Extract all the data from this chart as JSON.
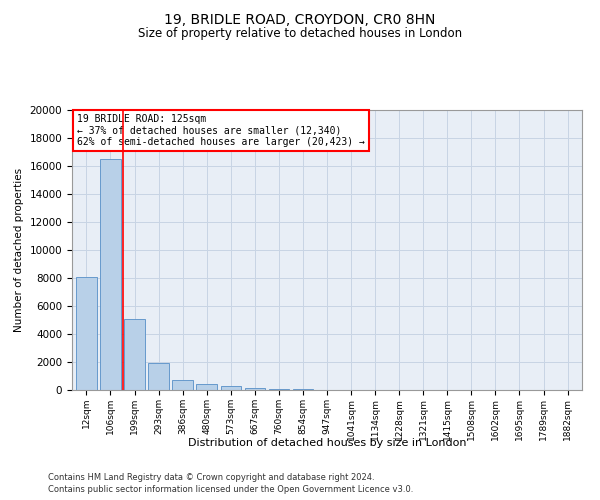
{
  "title1": "19, BRIDLE ROAD, CROYDON, CR0 8HN",
  "title2": "Size of property relative to detached houses in London",
  "xlabel": "Distribution of detached houses by size in London",
  "ylabel": "Number of detached properties",
  "categories": [
    "12sqm",
    "106sqm",
    "199sqm",
    "293sqm",
    "386sqm",
    "480sqm",
    "573sqm",
    "667sqm",
    "760sqm",
    "854sqm",
    "947sqm",
    "1041sqm",
    "1134sqm",
    "1228sqm",
    "1321sqm",
    "1415sqm",
    "1508sqm",
    "1602sqm",
    "1695sqm",
    "1789sqm",
    "1882sqm"
  ],
  "bar_values": [
    8050,
    16500,
    5100,
    1900,
    750,
    400,
    300,
    150,
    100,
    50,
    30,
    20,
    10,
    5,
    5,
    0,
    0,
    0,
    0,
    0,
    0
  ],
  "bar_color": "#b8d0e8",
  "bar_edge_color": "#6699cc",
  "property_line_x": 1.5,
  "annotation_line1": "19 BRIDLE ROAD: 125sqm",
  "annotation_line2": "← 37% of detached houses are smaller (12,340)",
  "annotation_line3": "62% of semi-detached houses are larger (20,423) →",
  "grid_color": "#c8d4e4",
  "bg_color": "#e8eef6",
  "ylim": [
    0,
    20000
  ],
  "yticks": [
    0,
    2000,
    4000,
    6000,
    8000,
    10000,
    12000,
    14000,
    16000,
    18000,
    20000
  ],
  "footer1": "Contains HM Land Registry data © Crown copyright and database right 2024.",
  "footer2": "Contains public sector information licensed under the Open Government Licence v3.0."
}
